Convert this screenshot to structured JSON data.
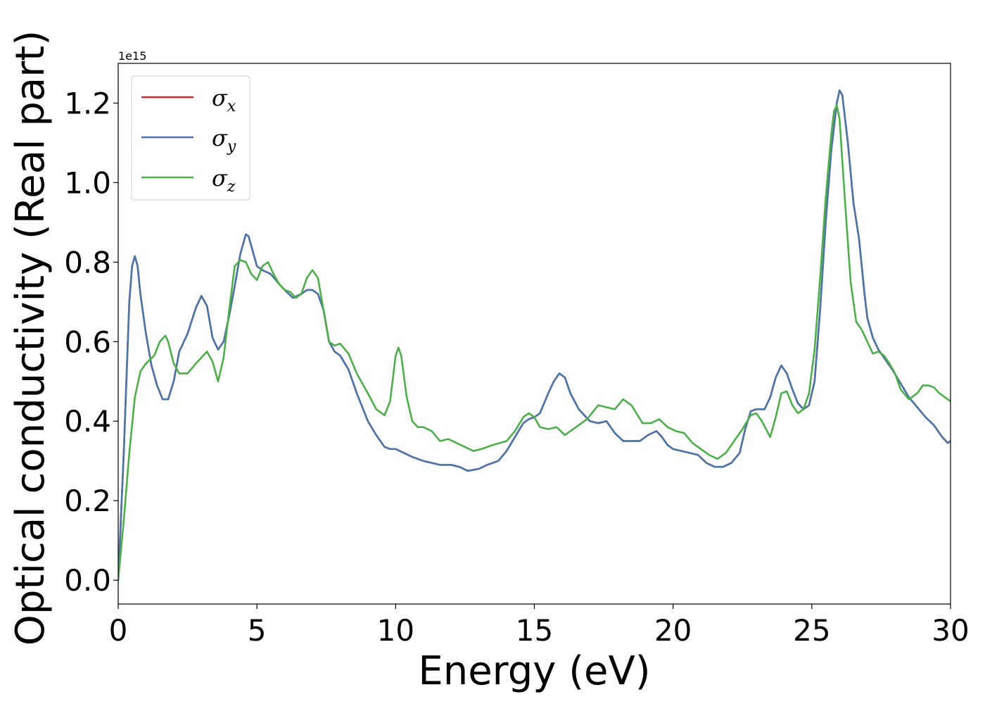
{
  "chart_data": {
    "type": "line",
    "title": "",
    "xlabel": "Energy (eV)",
    "ylabel": "Optical conductivity (Real part)",
    "y_offset_label": "1e15",
    "xlim": [
      0,
      30
    ],
    "ylim": [
      -0.06,
      1.3
    ],
    "x_ticks": [
      0,
      5,
      10,
      15,
      20,
      25,
      30
    ],
    "y_ticks": [
      0.0,
      0.2,
      0.4,
      0.6,
      0.8,
      1.0,
      1.2
    ],
    "x_tick_labels": [
      "0",
      "5",
      "10",
      "15",
      "20",
      "25",
      "30"
    ],
    "y_tick_labels": [
      "0.0",
      "0.2",
      "0.4",
      "0.6",
      "0.8",
      "1.0",
      "1.2"
    ],
    "grid": false,
    "legend_position": "top-left",
    "series": [
      {
        "name": "σx",
        "legend_base": "σ",
        "legend_sub": "x",
        "color": "#d62728",
        "x": [
          0,
          0.2,
          0.4,
          0.5,
          0.6,
          0.7,
          0.8,
          1.0,
          1.2,
          1.4,
          1.6,
          1.8,
          2.0,
          2.2,
          2.5,
          2.8,
          3.0,
          3.2,
          3.4,
          3.6,
          3.8,
          4.0,
          4.2,
          4.4,
          4.6,
          4.7,
          4.8,
          5.0,
          5.2,
          5.5,
          5.8,
          6.0,
          6.3,
          6.6,
          6.8,
          7.0,
          7.2,
          7.4,
          7.6,
          7.8,
          8.0,
          8.3,
          8.6,
          9.0,
          9.3,
          9.6,
          9.8,
          10.0,
          10.3,
          10.6,
          11.0,
          11.3,
          11.6,
          12.0,
          12.3,
          12.6,
          13.0,
          13.3,
          13.7,
          14.0,
          14.3,
          14.6,
          14.8,
          15.0,
          15.2,
          15.5,
          15.7,
          15.9,
          16.1,
          16.3,
          16.6,
          17.0,
          17.3,
          17.6,
          17.9,
          18.2,
          18.5,
          18.8,
          19.1,
          19.4,
          19.6,
          19.8,
          20.0,
          20.3,
          20.6,
          20.9,
          21.2,
          21.5,
          21.8,
          22.1,
          22.4,
          22.6,
          22.8,
          23.0,
          23.3,
          23.5,
          23.7,
          23.9,
          24.1,
          24.3,
          24.5,
          24.7,
          24.9,
          25.1,
          25.3,
          25.5,
          25.7,
          25.9,
          26.0,
          26.1,
          26.3,
          26.5,
          26.7,
          26.9,
          27.0,
          27.2,
          27.4,
          27.6,
          27.9,
          28.2,
          28.5,
          28.8,
          29.1,
          29.4,
          29.7,
          29.9,
          30.0
        ],
        "values": [
          0.0,
          0.32,
          0.7,
          0.79,
          0.815,
          0.79,
          0.72,
          0.62,
          0.54,
          0.49,
          0.455,
          0.455,
          0.5,
          0.575,
          0.62,
          0.685,
          0.715,
          0.69,
          0.61,
          0.58,
          0.6,
          0.665,
          0.74,
          0.82,
          0.87,
          0.865,
          0.84,
          0.79,
          0.78,
          0.77,
          0.745,
          0.73,
          0.71,
          0.72,
          0.73,
          0.73,
          0.72,
          0.68,
          0.6,
          0.575,
          0.565,
          0.53,
          0.47,
          0.4,
          0.365,
          0.335,
          0.33,
          0.33,
          0.32,
          0.31,
          0.3,
          0.295,
          0.29,
          0.29,
          0.285,
          0.275,
          0.28,
          0.29,
          0.3,
          0.325,
          0.36,
          0.395,
          0.405,
          0.41,
          0.42,
          0.47,
          0.5,
          0.52,
          0.51,
          0.47,
          0.43,
          0.4,
          0.395,
          0.4,
          0.37,
          0.35,
          0.35,
          0.35,
          0.365,
          0.375,
          0.36,
          0.34,
          0.33,
          0.325,
          0.32,
          0.315,
          0.295,
          0.285,
          0.285,
          0.295,
          0.32,
          0.38,
          0.425,
          0.43,
          0.43,
          0.46,
          0.51,
          0.54,
          0.52,
          0.48,
          0.445,
          0.43,
          0.44,
          0.5,
          0.68,
          0.9,
          1.08,
          1.2,
          1.232,
          1.22,
          1.1,
          0.95,
          0.86,
          0.72,
          0.66,
          0.61,
          0.58,
          0.56,
          0.53,
          0.495,
          0.46,
          0.435,
          0.41,
          0.39,
          0.36,
          0.345,
          0.35
        ]
      },
      {
        "name": "σy",
        "legend_base": "σ",
        "legend_sub": "y",
        "color": "#4a77aa",
        "x": [
          0,
          0.2,
          0.4,
          0.5,
          0.6,
          0.7,
          0.8,
          1.0,
          1.2,
          1.4,
          1.6,
          1.8,
          2.0,
          2.2,
          2.5,
          2.8,
          3.0,
          3.2,
          3.4,
          3.6,
          3.8,
          4.0,
          4.2,
          4.4,
          4.6,
          4.7,
          4.8,
          5.0,
          5.2,
          5.5,
          5.8,
          6.0,
          6.3,
          6.6,
          6.8,
          7.0,
          7.2,
          7.4,
          7.6,
          7.8,
          8.0,
          8.3,
          8.6,
          9.0,
          9.3,
          9.6,
          9.8,
          10.0,
          10.3,
          10.6,
          11.0,
          11.3,
          11.6,
          12.0,
          12.3,
          12.6,
          13.0,
          13.3,
          13.7,
          14.0,
          14.3,
          14.6,
          14.8,
          15.0,
          15.2,
          15.5,
          15.7,
          15.9,
          16.1,
          16.3,
          16.6,
          17.0,
          17.3,
          17.6,
          17.9,
          18.2,
          18.5,
          18.8,
          19.1,
          19.4,
          19.6,
          19.8,
          20.0,
          20.3,
          20.6,
          20.9,
          21.2,
          21.5,
          21.8,
          22.1,
          22.4,
          22.6,
          22.8,
          23.0,
          23.3,
          23.5,
          23.7,
          23.9,
          24.1,
          24.3,
          24.5,
          24.7,
          24.9,
          25.1,
          25.3,
          25.5,
          25.7,
          25.9,
          26.0,
          26.1,
          26.3,
          26.5,
          26.7,
          26.9,
          27.0,
          27.2,
          27.4,
          27.6,
          27.9,
          28.2,
          28.5,
          28.8,
          29.1,
          29.4,
          29.7,
          29.9,
          30.0
        ],
        "values": [
          0.0,
          0.32,
          0.7,
          0.79,
          0.815,
          0.79,
          0.72,
          0.62,
          0.54,
          0.49,
          0.455,
          0.455,
          0.5,
          0.575,
          0.62,
          0.685,
          0.715,
          0.69,
          0.61,
          0.58,
          0.6,
          0.665,
          0.74,
          0.82,
          0.87,
          0.865,
          0.84,
          0.79,
          0.78,
          0.77,
          0.745,
          0.73,
          0.71,
          0.72,
          0.73,
          0.73,
          0.72,
          0.68,
          0.6,
          0.575,
          0.565,
          0.53,
          0.47,
          0.4,
          0.365,
          0.335,
          0.33,
          0.33,
          0.32,
          0.31,
          0.3,
          0.295,
          0.29,
          0.29,
          0.285,
          0.275,
          0.28,
          0.29,
          0.3,
          0.325,
          0.36,
          0.395,
          0.405,
          0.41,
          0.42,
          0.47,
          0.5,
          0.52,
          0.51,
          0.47,
          0.43,
          0.4,
          0.395,
          0.4,
          0.37,
          0.35,
          0.35,
          0.35,
          0.365,
          0.375,
          0.36,
          0.34,
          0.33,
          0.325,
          0.32,
          0.315,
          0.295,
          0.285,
          0.285,
          0.295,
          0.32,
          0.38,
          0.425,
          0.43,
          0.43,
          0.46,
          0.51,
          0.54,
          0.52,
          0.48,
          0.445,
          0.43,
          0.44,
          0.5,
          0.68,
          0.9,
          1.08,
          1.2,
          1.232,
          1.22,
          1.1,
          0.95,
          0.86,
          0.72,
          0.66,
          0.61,
          0.58,
          0.56,
          0.53,
          0.495,
          0.46,
          0.435,
          0.41,
          0.39,
          0.36,
          0.345,
          0.35
        ]
      },
      {
        "name": "σz",
        "legend_base": "σ",
        "legend_sub": "z",
        "color": "#4daf4a",
        "x": [
          0,
          0.2,
          0.4,
          0.6,
          0.8,
          1.0,
          1.3,
          1.5,
          1.7,
          1.8,
          2.0,
          2.2,
          2.5,
          2.8,
          3.0,
          3.2,
          3.4,
          3.6,
          3.8,
          4.0,
          4.2,
          4.4,
          4.6,
          4.8,
          5.0,
          5.2,
          5.4,
          5.6,
          5.8,
          6.0,
          6.2,
          6.4,
          6.6,
          6.8,
          7.0,
          7.2,
          7.4,
          7.6,
          7.8,
          8.0,
          8.3,
          8.6,
          9.0,
          9.3,
          9.6,
          9.8,
          10.0,
          10.1,
          10.2,
          10.4,
          10.6,
          10.8,
          11.0,
          11.3,
          11.6,
          11.9,
          12.2,
          12.5,
          12.8,
          13.1,
          13.5,
          14.0,
          14.3,
          14.6,
          14.8,
          15.0,
          15.2,
          15.5,
          15.8,
          16.1,
          16.5,
          16.9,
          17.3,
          17.6,
          17.9,
          18.2,
          18.5,
          18.9,
          19.2,
          19.5,
          19.8,
          20.1,
          20.4,
          20.7,
          21.0,
          21.3,
          21.6,
          21.9,
          22.2,
          22.5,
          22.8,
          23.0,
          23.2,
          23.5,
          23.7,
          23.9,
          24.1,
          24.3,
          24.5,
          24.7,
          24.9,
          25.1,
          25.3,
          25.5,
          25.7,
          25.8,
          25.9,
          26.0,
          26.2,
          26.4,
          26.6,
          26.8,
          27.0,
          27.2,
          27.4,
          27.6,
          27.8,
          28.0,
          28.2,
          28.5,
          28.8,
          29.0,
          29.2,
          29.4,
          29.6,
          29.8,
          30.0
        ],
        "values": [
          0.0,
          0.15,
          0.32,
          0.46,
          0.525,
          0.545,
          0.565,
          0.6,
          0.615,
          0.6,
          0.545,
          0.52,
          0.52,
          0.545,
          0.56,
          0.575,
          0.55,
          0.5,
          0.56,
          0.68,
          0.79,
          0.805,
          0.8,
          0.77,
          0.755,
          0.79,
          0.8,
          0.77,
          0.745,
          0.73,
          0.725,
          0.71,
          0.72,
          0.76,
          0.78,
          0.76,
          0.68,
          0.6,
          0.59,
          0.595,
          0.57,
          0.52,
          0.47,
          0.43,
          0.415,
          0.45,
          0.565,
          0.585,
          0.565,
          0.46,
          0.4,
          0.385,
          0.385,
          0.375,
          0.35,
          0.355,
          0.345,
          0.335,
          0.325,
          0.33,
          0.34,
          0.35,
          0.375,
          0.41,
          0.42,
          0.41,
          0.385,
          0.38,
          0.385,
          0.365,
          0.385,
          0.405,
          0.44,
          0.435,
          0.43,
          0.455,
          0.44,
          0.395,
          0.395,
          0.405,
          0.385,
          0.375,
          0.37,
          0.345,
          0.33,
          0.315,
          0.305,
          0.32,
          0.35,
          0.38,
          0.415,
          0.42,
          0.4,
          0.36,
          0.41,
          0.47,
          0.475,
          0.44,
          0.42,
          0.43,
          0.47,
          0.58,
          0.76,
          0.96,
          1.12,
          1.18,
          1.195,
          1.16,
          0.95,
          0.75,
          0.65,
          0.63,
          0.6,
          0.57,
          0.575,
          0.565,
          0.545,
          0.52,
          0.48,
          0.455,
          0.47,
          0.49,
          0.49,
          0.485,
          0.47,
          0.46,
          0.45
        ]
      }
    ]
  }
}
